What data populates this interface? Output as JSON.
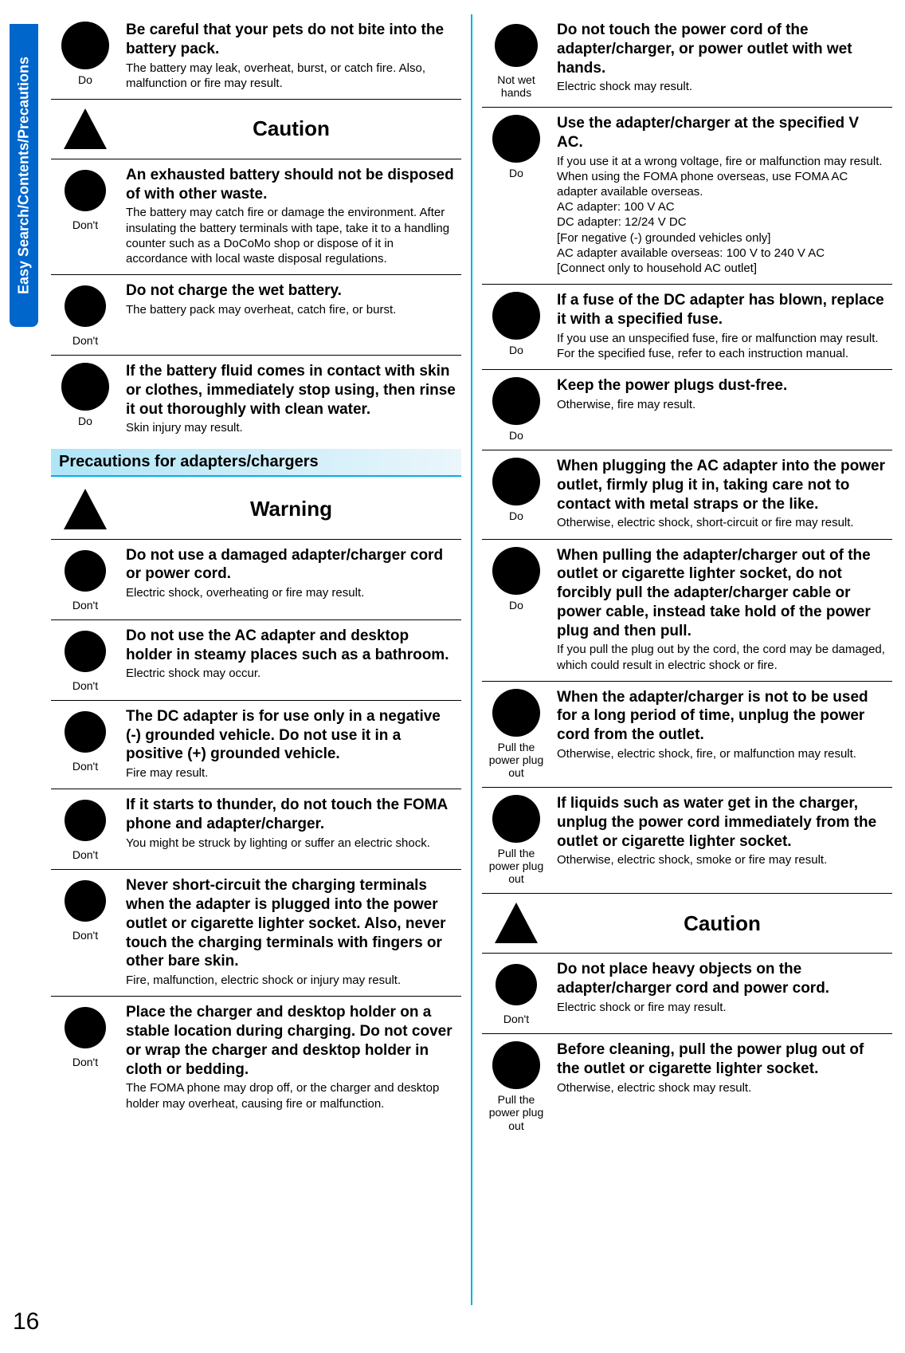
{
  "side_tab": "Easy Search/Contents/Precautions",
  "page_number": "16",
  "colors": {
    "accent": "#00aee6",
    "do_icon": "#0066cc",
    "banner_start": "#aee5f7",
    "banner_end": "#eaf6fb"
  },
  "labels": {
    "do": "Do",
    "dont": "Don't",
    "not_wet": "Not wet\nhands",
    "pull_plug": "Pull the\npower plug\nout",
    "caution": "Caution",
    "warning": "Warning"
  },
  "section_banner": "Precautions for adapters/chargers",
  "left": [
    {
      "icon": "do",
      "label": "do",
      "title": "Be careful that your pets do not bite into the battery pack.",
      "body": "The battery may leak, overheat, burst, or catch fire. Also, malfunction or fire may result."
    },
    {
      "alert": "caution"
    },
    {
      "icon": "dont",
      "label": "dont",
      "title": "An exhausted battery should not be disposed of with other waste.",
      "body": "The battery may catch fire or damage the environment. After insulating the battery terminals with tape, take it to a handling counter such as a DoCoMo shop or dispose of it in accordance with local waste disposal regulations."
    },
    {
      "icon": "dont",
      "label": "dont",
      "title": "Do not charge the wet battery.",
      "body": "The battery pack may overheat, catch fire, or burst."
    },
    {
      "icon": "do",
      "label": "do",
      "title": "If the battery fluid comes in contact with skin or clothes, immediately stop using, then rinse it out thoroughly with clean water.",
      "body": "Skin injury may result.",
      "no_border": true
    },
    {
      "section": true
    },
    {
      "alert": "warning"
    },
    {
      "icon": "dont",
      "label": "dont",
      "title": "Do not use a damaged adapter/charger cord or power cord.",
      "body": "Electric shock, overheating or fire may result."
    },
    {
      "icon": "dont",
      "label": "dont",
      "title": "Do not use the AC adapter and desktop holder in steamy places such as a bathroom.",
      "body": "Electric shock may occur."
    },
    {
      "icon": "dont",
      "label": "dont",
      "title": "The DC adapter is for use only in a negative (-) grounded vehicle. Do not use it in a positive (+) grounded vehicle.",
      "body": "Fire may result."
    },
    {
      "icon": "dont",
      "label": "dont",
      "title": "If it starts to thunder, do not touch the FOMA phone and adapter/charger.",
      "body": "You might be struck by lighting or suffer an electric shock."
    },
    {
      "icon": "dont",
      "label": "dont",
      "title": "Never short-circuit the charging terminals when the adapter is plugged into the power outlet or cigarette lighter socket. Also, never touch the charging terminals with fingers or other bare skin.",
      "body": "Fire, malfunction, electric shock or injury may result."
    },
    {
      "icon": "dont",
      "label": "dont",
      "title": "Place the charger and desktop holder on a stable location during charging. Do not cover or wrap the charger and desktop holder in cloth or bedding.",
      "body": "The FOMA phone may drop off, or the charger and desktop holder may overheat, causing fire or malfunction.",
      "no_border": true
    }
  ],
  "right": [
    {
      "icon": "wet",
      "label": "not_wet",
      "title": "Do not touch the power cord of the adapter/charger, or power outlet with wet hands.",
      "body": "Electric shock may result."
    },
    {
      "icon": "do",
      "label": "do",
      "title": "Use the adapter/charger at the specified V AC.",
      "body": "If you use it at a wrong voltage, fire or malfunction may result. When using the FOMA phone overseas, use FOMA AC adapter available overseas.\nAC adapter: 100 V AC\nDC adapter: 12/24 V DC\n[For negative (-) grounded vehicles only]\nAC adapter available overseas: 100 V to 240 V AC\n[Connect only to household AC outlet]"
    },
    {
      "icon": "do",
      "label": "do",
      "title": "If a fuse of the DC adapter has blown, replace it with a specified fuse.",
      "body": "If you use an unspecified fuse, fire or malfunction may result. For the specified fuse, refer to each instruction manual."
    },
    {
      "icon": "do",
      "label": "do",
      "title": "Keep the power plugs dust-free.",
      "body": "Otherwise, fire may result."
    },
    {
      "icon": "do",
      "label": "do",
      "title": "When plugging the AC adapter into the power outlet, firmly plug it in, taking care not to contact with metal straps or the like.",
      "body": "Otherwise, electric shock, short-circuit or fire may result."
    },
    {
      "icon": "do",
      "label": "do",
      "title": "When pulling the adapter/charger out of the outlet or cigarette lighter socket, do not forcibly pull the adapter/charger cable or power cable, instead take hold of the power plug and then pull.",
      "body": "If you pull the plug out by the cord, the cord may be damaged, which could result in electric shock or fire."
    },
    {
      "icon": "plug",
      "label": "pull_plug",
      "title": "When the adapter/charger is not to be used for a long period of time, unplug the power cord from the outlet.",
      "body": "Otherwise, electric shock, fire, or malfunction may result."
    },
    {
      "icon": "plug",
      "label": "pull_plug",
      "title": "If liquids such as water get in the charger, unplug the power cord immediately from the outlet or cigarette lighter socket.",
      "body": "Otherwise, electric shock, smoke or fire may result."
    },
    {
      "alert": "caution"
    },
    {
      "icon": "dont",
      "label": "dont",
      "title": "Do not place heavy objects on the adapter/charger cord and power cord.",
      "body": "Electric shock or fire may result."
    },
    {
      "icon": "plug",
      "label": "pull_plug",
      "title": "Before cleaning, pull the power plug out of the outlet or cigarette lighter socket.",
      "body": "Otherwise, electric shock may result.",
      "no_border": true
    }
  ]
}
